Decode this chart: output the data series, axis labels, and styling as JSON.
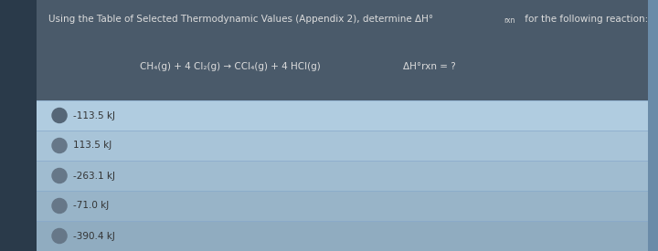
{
  "bg_color": "#6a8ba8",
  "question_box_color": "#4a5a6a",
  "question_box_text_color": "#dddddd",
  "answer_row_color": "#a8c4d8",
  "answer_text_color": "#333333",
  "circle_color": "#667788",
  "divider_color": "#88aacc",
  "left_bar_color": "#2a3a4a",
  "question_line1": "Using the Table of Selected Thermodynamic Values (Appendix 2), determine ΔH°",
  "question_line1b": "rxn",
  "question_line1c": " for the following reaction:",
  "reaction": "CH₄(g) + 4 Cl₂(g) → CCl₄(g) + 4 HCl(g)",
  "delta_h": "ΔH°rxn = ?",
  "options": [
    "-113.5 kJ",
    "113.5 kJ",
    "-263.1 kJ",
    "-71.0 kJ",
    "-390.4 kJ"
  ],
  "font_size_question": 7.5,
  "font_size_reaction": 7.5,
  "font_size_option": 7.5
}
